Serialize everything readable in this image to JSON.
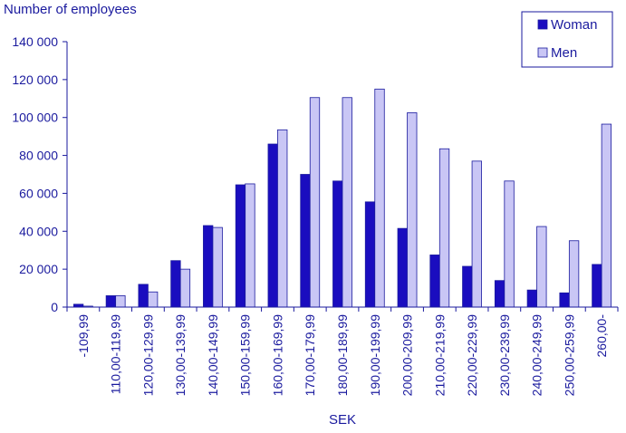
{
  "chart_data": {
    "type": "bar",
    "title": "",
    "ylabel": "Number of employees",
    "xlabel": "SEK",
    "ylim": [
      0,
      140000
    ],
    "yticks": [
      0,
      20000,
      40000,
      60000,
      80000,
      100000,
      120000,
      140000
    ],
    "ytick_labels": [
      "0",
      "20 000",
      "40 000",
      "60 000",
      "80 000",
      "100 000",
      "120 000",
      "140 000"
    ],
    "categories": [
      "-109,99",
      "110,00-119,99",
      "120,00-129,99",
      "130,00-139,99",
      "140,00-149,99",
      "150,00-159,99",
      "160,00-169,99",
      "170,00-179,99",
      "180,00-189,99",
      "190,00-199,99",
      "200,00-209,99",
      "210,00-219,99",
      "220,00-229,99",
      "230,00-239,99",
      "240,00-249,99",
      "250,00-259,99",
      "260,00-"
    ],
    "series": [
      {
        "name": "Woman",
        "color": "#1a0dbf",
        "values": [
          1500,
          6000,
          12000,
          24500,
          43000,
          64500,
          86000,
          70000,
          66500,
          55500,
          41500,
          27500,
          21500,
          14000,
          9000,
          7500,
          22500
        ]
      },
      {
        "name": "Men",
        "color": "#c9c6f5",
        "values": [
          500,
          6000,
          8000,
          20000,
          42000,
          65000,
          93500,
          110500,
          110500,
          115000,
          102500,
          83500,
          77000,
          66500,
          42500,
          35000,
          96500
        ]
      }
    ],
    "legend_position": "top-right",
    "grid": false
  }
}
